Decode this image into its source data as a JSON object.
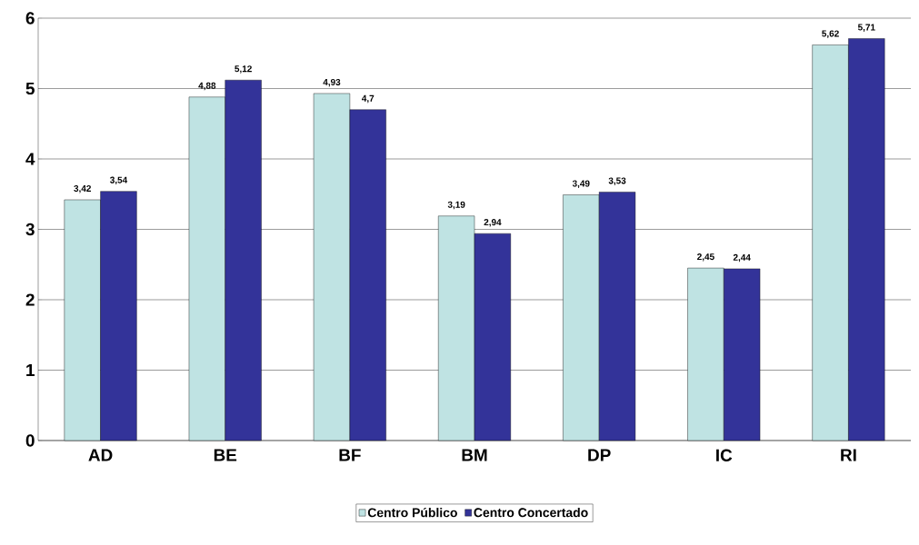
{
  "chart_data": {
    "type": "bar",
    "categories": [
      "AD",
      "BE",
      "BF",
      "BM",
      "DP",
      "IC",
      "RI"
    ],
    "series": [
      {
        "name": "Centro Público",
        "color": "#bfe3e3",
        "values": [
          3.42,
          4.88,
          4.93,
          3.19,
          3.49,
          2.45,
          5.62
        ],
        "value_labels": [
          "3,42",
          "4,88",
          "4,93",
          "3,19",
          "3,49",
          "2,45",
          "5,62"
        ]
      },
      {
        "name": "Centro Concertado",
        "color": "#333399",
        "values": [
          3.54,
          5.12,
          4.7,
          2.94,
          3.53,
          2.44,
          5.71
        ],
        "value_labels": [
          "3,54",
          "5,12",
          "4,7",
          "2,94",
          "3,53",
          "2,44",
          "5,71"
        ]
      }
    ],
    "ylim": [
      0,
      6
    ],
    "yticks": [
      0,
      1,
      2,
      3,
      4,
      5,
      6
    ],
    "grid": "y",
    "legend": "bottom"
  }
}
